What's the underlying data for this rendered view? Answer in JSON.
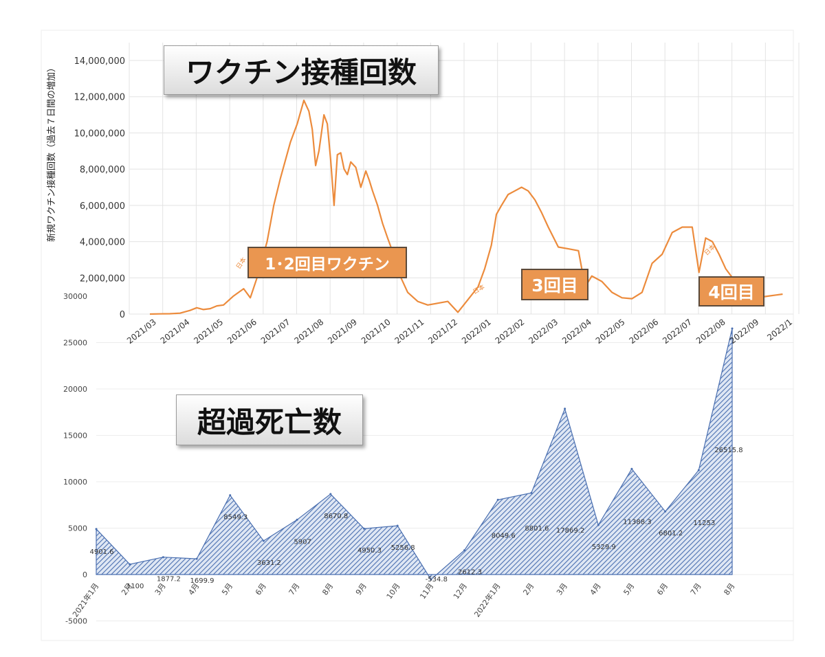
{
  "vaccine_title": "ワクチン接種回数",
  "excess_title": "超過死亡数",
  "annotations": {
    "dose12": "1･2回目ワクチン",
    "dose3": "3回目",
    "dose4": "4回目",
    "japan_label": "日本"
  },
  "colors": {
    "vaccine_line": "#ec8b3c",
    "area_fill": "#4a6fb0",
    "grid": "#e3e3e3",
    "axis_text": "#333333"
  },
  "chart_data": [
    {
      "type": "line",
      "title": "ワクチン接種回数",
      "ylabel": "新規ワクチン接種回数（過去７日間の増加）",
      "xlabel": "",
      "ylim": [
        0,
        14000000
      ],
      "y_ticks": [
        0,
        2000000,
        4000000,
        6000000,
        8000000,
        10000000,
        12000000,
        14000000
      ],
      "y_tick_labels": [
        "0",
        "2,000,000",
        "4,000,000",
        "6,000,000",
        "8,000,000",
        "10,000,000",
        "12,000,000",
        "14,000,000"
      ],
      "x_tick_labels": [
        "2021/03",
        "2021/04",
        "2021/05",
        "2021/06",
        "2021/07",
        "2021/08",
        "2021/09",
        "2021/10",
        "2021/11",
        "2021/12",
        "2022/01",
        "2022/02",
        "2022/03",
        "2022/04",
        "2022/05",
        "2022/06",
        "2022/07",
        "2022/08",
        "2022/09",
        "2022/1"
      ],
      "series": [
        {
          "name": "日本",
          "x": [
            0,
            0.3,
            0.6,
            0.9,
            1.2,
            1.4,
            1.6,
            1.8,
            2.0,
            2.2,
            2.5,
            2.8,
            3.0,
            3.2,
            3.5,
            3.7,
            3.9,
            4.2,
            4.4,
            4.6,
            4.75,
            4.85,
            4.95,
            5.05,
            5.2,
            5.3,
            5.4,
            5.5,
            5.6,
            5.7,
            5.8,
            5.9,
            6.0,
            6.15,
            6.3,
            6.45,
            6.55,
            6.65,
            6.8,
            6.95,
            7.1,
            7.3,
            7.5,
            7.7,
            8.0,
            8.3,
            8.6,
            8.9,
            9.2,
            9.5,
            9.8,
            10.0,
            10.2,
            10.35,
            10.5,
            10.7,
            10.9,
            11.1,
            11.3,
            11.5,
            11.7,
            11.9,
            12.2,
            12.5,
            12.8,
            13.0,
            13.2,
            13.5,
            13.8,
            14.1,
            14.4,
            14.7,
            15.0,
            15.3,
            15.6,
            15.9,
            16.2,
            16.4,
            16.6,
            16.8,
            17.0,
            17.2,
            17.4,
            17.55,
            17.7,
            17.85,
            18.0,
            18.15,
            18.3,
            18.5,
            18.7,
            18.9
          ],
          "values": [
            0,
            10000,
            20000,
            50000,
            200000,
            350000,
            250000,
            300000,
            450000,
            500000,
            1000000,
            1400000,
            900000,
            2000000,
            4000000,
            6000000,
            7500000,
            9500000,
            10500000,
            11800000,
            11200000,
            10200000,
            8200000,
            9000000,
            11000000,
            10500000,
            8500000,
            6000000,
            8800000,
            8900000,
            8000000,
            7700000,
            8400000,
            8100000,
            7000000,
            7900000,
            7400000,
            6800000,
            6000000,
            5000000,
            4200000,
            3200000,
            2000000,
            1200000,
            700000,
            500000,
            600000,
            700000,
            100000,
            800000,
            1500000,
            2500000,
            3800000,
            5500000,
            6000000,
            6600000,
            6800000,
            7000000,
            6800000,
            6300000,
            5600000,
            4800000,
            3700000,
            3600000,
            3500000,
            1500000,
            2100000,
            1800000,
            1200000,
            900000,
            850000,
            1200000,
            2800000,
            3300000,
            4500000,
            4800000,
            4800000,
            2300000,
            4200000,
            4000000,
            3300000,
            2500000,
            2000000,
            1000000,
            900000,
            800000,
            850000,
            900000,
            950000,
            1000000,
            1050000,
            1100000
          ]
        }
      ]
    },
    {
      "type": "area",
      "title": "超過死亡数",
      "xlabel": "",
      "ylabel": "",
      "ylim": [
        -5000,
        25000
      ],
      "y_ticks": [
        -5000,
        0,
        5000,
        10000,
        15000,
        20000,
        25000
      ],
      "y_tick_labels": [
        "-5000",
        "0",
        "5000",
        "10000",
        "15000",
        "20000",
        "25000"
      ],
      "categories": [
        "2021年1月",
        "2月",
        "3月",
        "4月",
        "5月",
        "6月",
        "7月",
        "8月",
        "9月",
        "10月",
        "11月",
        "12月",
        "2022年1月",
        "2月",
        "3月",
        "4月",
        "5月",
        "6月",
        "7月",
        "8月"
      ],
      "values": [
        4901.6,
        1100,
        1877.2,
        1699.9,
        8549.3,
        3631.2,
        5907,
        8670.8,
        4950.3,
        5256.8,
        -534.8,
        2612.3,
        8049.6,
        8801.6,
        17869.2,
        5329.9,
        11388.3,
        6801.2,
        11253,
        26515.8
      ],
      "data_labels": [
        "4901.6",
        "1100",
        "1877.2",
        "1699.9",
        "8549.3",
        "3631.2",
        "5907",
        "8670.8",
        "4950.3",
        "5256.8",
        "-534.8",
        "2612.3",
        "8049.6",
        "8801.6",
        "17869.2",
        "5329.9",
        "11388.3",
        "6801.2",
        "11253",
        "26515.8"
      ],
      "partial_tick_label": "30000"
    }
  ]
}
